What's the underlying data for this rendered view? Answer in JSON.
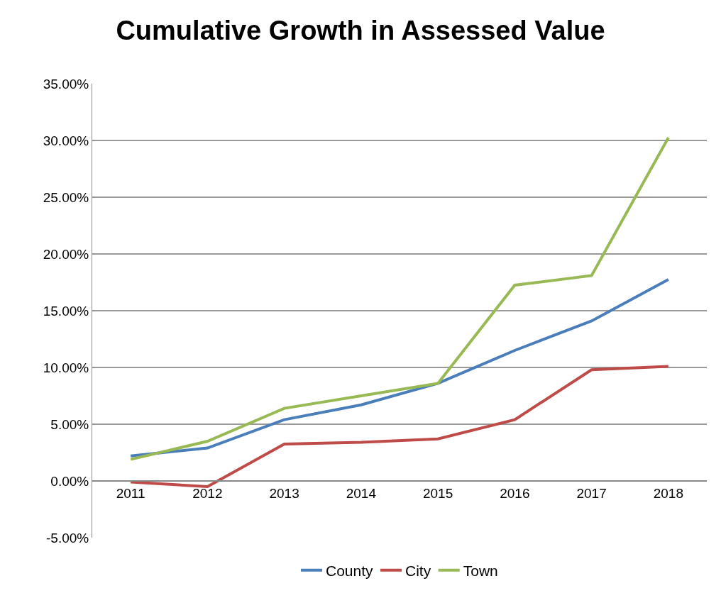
{
  "chart_data": {
    "type": "line",
    "title": "Cumulative Growth in Assessed Value",
    "categories": [
      "2011",
      "2012",
      "2013",
      "2014",
      "2015",
      "2016",
      "2017",
      "2018"
    ],
    "series": [
      {
        "name": "County",
        "color": "#4a7ebb",
        "values": [
          2.2,
          2.9,
          5.4,
          6.7,
          8.6,
          11.5,
          14.1,
          17.75
        ]
      },
      {
        "name": "City",
        "color": "#be4b48",
        "values": [
          -0.1,
          -0.5,
          3.25,
          3.4,
          3.7,
          5.4,
          9.8,
          10.1
        ]
      },
      {
        "name": "Town",
        "color": "#98b954",
        "values": [
          1.9,
          3.5,
          6.4,
          7.5,
          8.6,
          17.25,
          18.1,
          30.25
        ]
      }
    ],
    "ylim": [
      -5,
      35
    ],
    "yticks": [
      {
        "value": -5,
        "label": "-5.00%"
      },
      {
        "value": 0,
        "label": "0.00%"
      },
      {
        "value": 5,
        "label": "5.00%"
      },
      {
        "value": 10,
        "label": "10.00%"
      },
      {
        "value": 15,
        "label": "15.00%"
      },
      {
        "value": 20,
        "label": "20.00%"
      },
      {
        "value": 25,
        "label": "25.00%"
      },
      {
        "value": 30,
        "label": "30.00%"
      },
      {
        "value": 35,
        "label": "35.00%"
      }
    ],
    "grid": "y",
    "legend": "bottom",
    "marker": "none",
    "line_style": "solid"
  }
}
